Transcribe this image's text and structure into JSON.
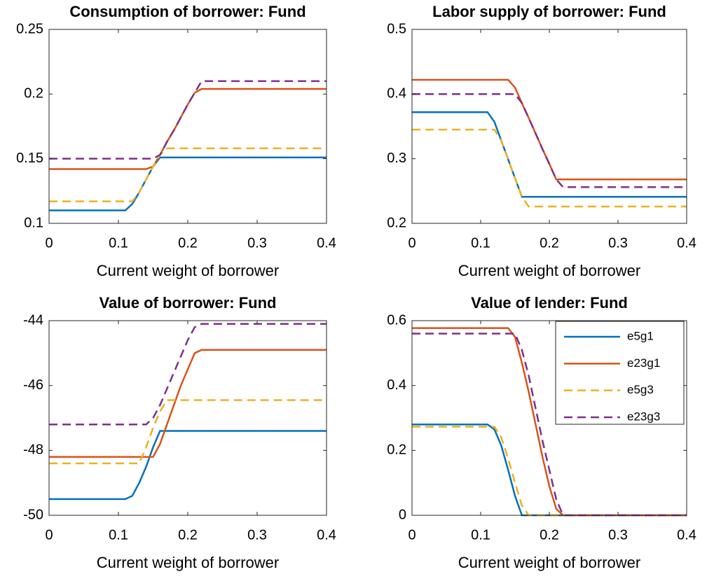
{
  "chart_data": [
    {
      "type": "line",
      "title": "Consumption of borrower: Fund",
      "xlabel": "Current weight of borrower",
      "x": [
        0,
        0.05,
        0.1,
        0.11,
        0.12,
        0.13,
        0.14,
        0.15,
        0.16,
        0.17,
        0.18,
        0.19,
        0.2,
        0.21,
        0.22,
        0.25,
        0.3,
        0.35,
        0.4
      ],
      "xlim": [
        0,
        0.4
      ],
      "xticks": [
        0,
        0.1,
        0.2,
        0.3,
        0.4
      ],
      "ylim": [
        0.1,
        0.25
      ],
      "yticks": [
        0.1,
        0.15,
        0.2,
        0.25
      ],
      "grid": false,
      "series": [
        {
          "color": "#0072bd",
          "style": "solid",
          "values": [
            0.11,
            0.11,
            0.11,
            0.11,
            0.115,
            0.124,
            0.134,
            0.144,
            0.151,
            0.151,
            0.151,
            0.151,
            0.151,
            0.151,
            0.151,
            0.151,
            0.151,
            0.151,
            0.151
          ]
        },
        {
          "color": "#d95319",
          "style": "solid",
          "values": [
            0.142,
            0.142,
            0.142,
            0.142,
            0.142,
            0.142,
            0.142,
            0.144,
            0.153,
            0.163,
            0.172,
            0.182,
            0.192,
            0.201,
            0.204,
            0.204,
            0.204,
            0.204,
            0.204
          ]
        },
        {
          "color": "#edb120",
          "style": "dashed",
          "values": [
            0.117,
            0.117,
            0.117,
            0.117,
            0.117,
            0.124,
            0.134,
            0.144,
            0.153,
            0.158,
            0.158,
            0.158,
            0.158,
            0.158,
            0.158,
            0.158,
            0.158,
            0.158,
            0.158
          ]
        },
        {
          "color": "#7e2f8e",
          "style": "dashed",
          "values": [
            0.15,
            0.15,
            0.15,
            0.15,
            0.15,
            0.15,
            0.15,
            0.15,
            0.153,
            0.163,
            0.172,
            0.182,
            0.192,
            0.201,
            0.21,
            0.21,
            0.21,
            0.21,
            0.21
          ]
        }
      ]
    },
    {
      "type": "line",
      "title": "Labor supply of borrower: Fund",
      "xlabel": "Current weight of borrower",
      "x": [
        0,
        0.05,
        0.1,
        0.11,
        0.12,
        0.13,
        0.14,
        0.15,
        0.16,
        0.17,
        0.18,
        0.19,
        0.2,
        0.21,
        0.22,
        0.25,
        0.3,
        0.35,
        0.4
      ],
      "xlim": [
        0,
        0.4
      ],
      "xticks": [
        0,
        0.1,
        0.2,
        0.3,
        0.4
      ],
      "ylim": [
        0.2,
        0.5
      ],
      "yticks": [
        0.2,
        0.3,
        0.4,
        0.5
      ],
      "grid": false,
      "series": [
        {
          "color": "#0072bd",
          "style": "solid",
          "values": [
            0.372,
            0.372,
            0.372,
            0.372,
            0.357,
            0.328,
            0.299,
            0.27,
            0.241,
            0.241,
            0.241,
            0.241,
            0.241,
            0.241,
            0.241,
            0.241,
            0.241,
            0.241,
            0.241
          ]
        },
        {
          "color": "#d95319",
          "style": "solid",
          "values": [
            0.422,
            0.422,
            0.422,
            0.422,
            0.422,
            0.422,
            0.422,
            0.41,
            0.386,
            0.363,
            0.339,
            0.315,
            0.292,
            0.268,
            0.268,
            0.268,
            0.268,
            0.268,
            0.268
          ]
        },
        {
          "color": "#edb120",
          "style": "dashed",
          "values": [
            0.345,
            0.345,
            0.345,
            0.345,
            0.345,
            0.328,
            0.299,
            0.27,
            0.241,
            0.226,
            0.226,
            0.226,
            0.226,
            0.226,
            0.226,
            0.226,
            0.226,
            0.226,
            0.226
          ]
        },
        {
          "color": "#7e2f8e",
          "style": "dashed",
          "values": [
            0.4,
            0.4,
            0.4,
            0.4,
            0.4,
            0.4,
            0.4,
            0.4,
            0.386,
            0.363,
            0.339,
            0.315,
            0.292,
            0.268,
            0.256,
            0.256,
            0.256,
            0.256,
            0.256
          ]
        }
      ]
    },
    {
      "type": "line",
      "title": "Value of borrower: Fund",
      "xlabel": "Current weight of borrower",
      "x": [
        0,
        0.05,
        0.1,
        0.11,
        0.12,
        0.13,
        0.14,
        0.15,
        0.16,
        0.17,
        0.18,
        0.19,
        0.2,
        0.21,
        0.22,
        0.25,
        0.3,
        0.35,
        0.4
      ],
      "xlim": [
        0,
        0.4
      ],
      "xticks": [
        0,
        0.1,
        0.2,
        0.3,
        0.4
      ],
      "ylim": [
        -50,
        -44
      ],
      "yticks": [
        -50,
        -48,
        -46,
        -44
      ],
      "grid": false,
      "series": [
        {
          "color": "#0072bd",
          "style": "solid",
          "values": [
            -49.5,
            -49.5,
            -49.5,
            -49.5,
            -49.4,
            -49.0,
            -48.5,
            -47.9,
            -47.4,
            -47.4,
            -47.4,
            -47.4,
            -47.4,
            -47.4,
            -47.4,
            -47.4,
            -47.4,
            -47.4,
            -47.4
          ]
        },
        {
          "color": "#d95319",
          "style": "solid",
          "values": [
            -48.2,
            -48.2,
            -48.2,
            -48.2,
            -48.2,
            -48.2,
            -48.2,
            -48.2,
            -47.8,
            -47.2,
            -46.6,
            -46.0,
            -45.5,
            -45.0,
            -44.9,
            -44.9,
            -44.9,
            -44.9,
            -44.9
          ]
        },
        {
          "color": "#edb120",
          "style": "dashed",
          "values": [
            -48.4,
            -48.4,
            -48.4,
            -48.4,
            -48.4,
            -48.4,
            -47.9,
            -47.3,
            -46.8,
            -46.45,
            -46.45,
            -46.45,
            -46.45,
            -46.45,
            -46.45,
            -46.45,
            -46.45,
            -46.45,
            -46.45
          ]
        },
        {
          "color": "#7e2f8e",
          "style": "dashed",
          "values": [
            -47.2,
            -47.2,
            -47.2,
            -47.2,
            -47.2,
            -47.2,
            -47.2,
            -47.0,
            -46.6,
            -46.1,
            -45.6,
            -45.1,
            -44.6,
            -44.2,
            -44.1,
            -44.1,
            -44.1,
            -44.1,
            -44.1
          ]
        }
      ]
    },
    {
      "type": "line",
      "title": "Value of lender: Fund",
      "xlabel": "Current weight of borrower",
      "x": [
        0,
        0.05,
        0.1,
        0.11,
        0.12,
        0.13,
        0.14,
        0.15,
        0.16,
        0.17,
        0.18,
        0.19,
        0.2,
        0.21,
        0.22,
        0.25,
        0.3,
        0.35,
        0.4
      ],
      "xlim": [
        0,
        0.4
      ],
      "xticks": [
        0,
        0.1,
        0.2,
        0.3,
        0.4
      ],
      "ylim": [
        0,
        0.6
      ],
      "yticks": [
        0,
        0.2,
        0.4,
        0.6
      ],
      "grid": false,
      "legend": "northeast",
      "series": [
        {
          "name": "e5g1",
          "color": "#0072bd",
          "style": "solid",
          "values": [
            0.28,
            0.28,
            0.28,
            0.28,
            0.265,
            0.215,
            0.14,
            0.06,
            0,
            0,
            0,
            0,
            0,
            0,
            0,
            0,
            0,
            0,
            0
          ]
        },
        {
          "name": "e23g1",
          "color": "#d95319",
          "style": "solid",
          "values": [
            0.577,
            0.577,
            0.577,
            0.577,
            0.577,
            0.577,
            0.577,
            0.55,
            0.47,
            0.38,
            0.28,
            0.18,
            0.09,
            0.02,
            0,
            0,
            0,
            0,
            0
          ]
        },
        {
          "name": "e5g3",
          "color": "#edb120",
          "style": "dashed",
          "values": [
            0.273,
            0.273,
            0.273,
            0.273,
            0.273,
            0.24,
            0.175,
            0.1,
            0.03,
            0,
            0,
            0,
            0,
            0,
            0,
            0,
            0,
            0,
            0
          ]
        },
        {
          "name": "e23g3",
          "color": "#7e2f8e",
          "style": "dashed",
          "values": [
            0.56,
            0.56,
            0.56,
            0.56,
            0.56,
            0.56,
            0.56,
            0.56,
            0.51,
            0.43,
            0.33,
            0.23,
            0.14,
            0.05,
            0,
            0,
            0,
            0,
            0
          ]
        }
      ]
    }
  ]
}
